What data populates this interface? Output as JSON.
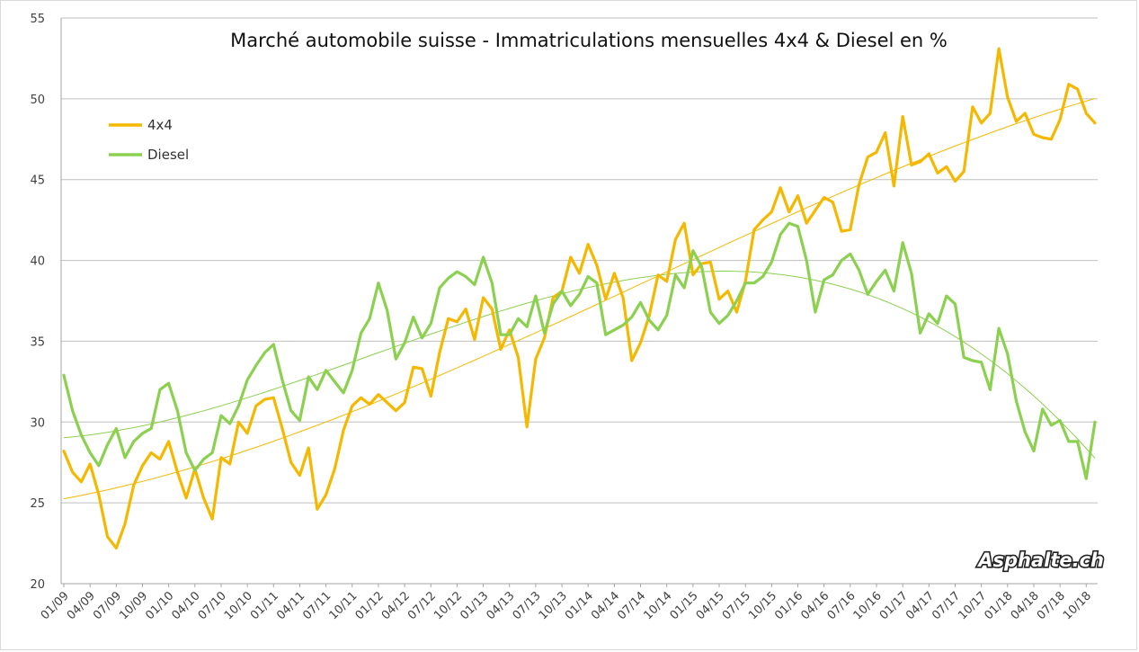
{
  "chart_data": {
    "type": "line",
    "title": "Marché automobile suisse - Immatriculations mensuelles 4x4 & Diesel en %",
    "ylim": [
      20,
      55
    ],
    "yticks": [
      20,
      25,
      30,
      35,
      40,
      45,
      50,
      55
    ],
    "xtick_labels": [
      "01/09",
      "04/09",
      "07/09",
      "10/09",
      "01/10",
      "04/10",
      "07/10",
      "10/10",
      "01/11",
      "04/11",
      "07/11",
      "10/11",
      "01/12",
      "04/12",
      "07/12",
      "10/12",
      "01/13",
      "04/13",
      "07/13",
      "10/13",
      "01/14",
      "04/14",
      "07/14",
      "10/14",
      "01/15",
      "04/15",
      "07/15",
      "10/15",
      "01/16",
      "04/16",
      "07/16",
      "10/16",
      "01/17",
      "04/17",
      "07/17",
      "10/17",
      "01/18",
      "04/18",
      "07/18",
      "10/18"
    ],
    "grid": "horizontal",
    "legend_position": "top-left",
    "watermark": "Asphalte.ch",
    "x_start": "01/09",
    "series": [
      {
        "name": "4x4",
        "color": "#f5b800",
        "trendline": true,
        "values": [
          28.2,
          26.9,
          26.3,
          27.4,
          25.5,
          22.9,
          22.2,
          23.7,
          26.1,
          27.3,
          28.1,
          27.7,
          28.8,
          26.9,
          25.3,
          27.1,
          25.3,
          24.0,
          27.8,
          27.4,
          30.0,
          29.3,
          31.0,
          31.4,
          31.5,
          29.6,
          27.5,
          26.7,
          28.4,
          24.6,
          25.5,
          27.1,
          29.5,
          31.0,
          31.5,
          31.1,
          31.7,
          31.2,
          30.7,
          31.2,
          33.4,
          33.3,
          31.6,
          34.3,
          36.4,
          36.2,
          37.0,
          35.1,
          37.7,
          37.0,
          34.5,
          35.7,
          34.0,
          29.7,
          33.9,
          35.2,
          37.7,
          38.1,
          40.2,
          39.2,
          41.0,
          39.7,
          37.6,
          39.2,
          37.7,
          33.8,
          34.9,
          36.6,
          39.1,
          38.7,
          41.3,
          42.3,
          39.1,
          39.8,
          39.9,
          37.6,
          38.1,
          36.8,
          38.7,
          41.9,
          42.5,
          43.0,
          44.5,
          43.0,
          44.0,
          42.3,
          43.1,
          43.9,
          43.6,
          41.8,
          41.9,
          44.7,
          46.4,
          46.7,
          47.9,
          44.6,
          48.9,
          45.9,
          46.1,
          46.6,
          45.4,
          45.8,
          44.9,
          45.5,
          49.5,
          48.5,
          49.1,
          53.1,
          50.1,
          48.6,
          49.1,
          47.8,
          47.6,
          47.5,
          48.7,
          50.9,
          50.6,
          49.1,
          48.5
        ]
      },
      {
        "name": "Diesel",
        "color": "#8cd050",
        "trendline": true,
        "values": [
          32.9,
          30.7,
          29.2,
          28.1,
          27.3,
          28.6,
          29.6,
          27.8,
          28.8,
          29.3,
          29.6,
          32.0,
          32.4,
          30.7,
          28.1,
          27.0,
          27.7,
          28.1,
          30.4,
          29.9,
          31.0,
          32.6,
          33.5,
          34.3,
          34.8,
          32.6,
          30.7,
          30.1,
          32.8,
          32.0,
          33.2,
          32.5,
          31.8,
          33.2,
          35.5,
          36.4,
          38.6,
          36.9,
          33.9,
          34.9,
          36.5,
          35.2,
          36.1,
          38.3,
          38.9,
          39.3,
          39.0,
          38.5,
          40.2,
          38.6,
          35.4,
          35.4,
          36.4,
          35.9,
          37.8,
          35.5,
          37.3,
          38.1,
          37.2,
          37.9,
          39.0,
          38.6,
          35.4,
          35.7,
          36.0,
          36.5,
          37.4,
          36.3,
          35.7,
          36.6,
          39.1,
          38.3,
          40.6,
          39.6,
          36.8,
          36.1,
          36.6,
          37.5,
          38.6,
          38.6,
          39.0,
          39.9,
          41.6,
          42.3,
          42.1,
          40.0,
          36.8,
          38.8,
          39.1,
          40.0,
          40.4,
          39.4,
          37.9,
          38.7,
          39.4,
          38.1,
          41.1,
          39.2,
          35.5,
          36.7,
          36.1,
          37.8,
          37.3,
          34.0,
          33.8,
          33.7,
          32.0,
          35.8,
          34.2,
          31.3,
          29.4,
          28.2,
          30.8,
          29.8,
          30.1,
          28.8,
          28.8,
          26.5,
          30.0
        ]
      }
    ]
  }
}
